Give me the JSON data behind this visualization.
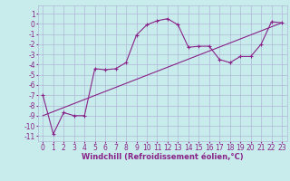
{
  "xlabel": "Windchill (Refroidissement éolien,°C)",
  "bg_color": "#c8ecec",
  "grid_color": "#b0b8d8",
  "line_color": "#882288",
  "xlim": [
    -0.5,
    23.5
  ],
  "ylim": [
    -11.5,
    1.8
  ],
  "yticks": [
    1,
    0,
    -1,
    -2,
    -3,
    -4,
    -5,
    -6,
    -7,
    -8,
    -9,
    -10,
    -11
  ],
  "xticks": [
    0,
    1,
    2,
    3,
    4,
    5,
    6,
    7,
    8,
    9,
    10,
    11,
    12,
    13,
    14,
    15,
    16,
    17,
    18,
    19,
    20,
    21,
    22,
    23
  ],
  "line1_x": [
    0,
    1,
    2,
    3,
    4,
    5,
    6,
    7,
    8,
    9,
    10,
    11,
    12,
    13,
    14,
    15,
    16,
    17,
    18,
    19,
    20,
    21,
    22,
    23
  ],
  "line1_y": [
    -7.0,
    -10.8,
    -8.7,
    -9.0,
    -9.0,
    -4.4,
    -4.5,
    -4.4,
    -3.8,
    -1.1,
    -0.1,
    0.3,
    0.5,
    -0.1,
    -2.3,
    -2.2,
    -2.2,
    -3.5,
    -3.8,
    -3.2,
    -3.2,
    -2.0,
    0.2,
    0.1
  ],
  "line2_x": [
    0,
    23
  ],
  "line2_y": [
    -9.0,
    0.1
  ],
  "tick_fontsize": 5.5,
  "label_fontsize": 6.0
}
